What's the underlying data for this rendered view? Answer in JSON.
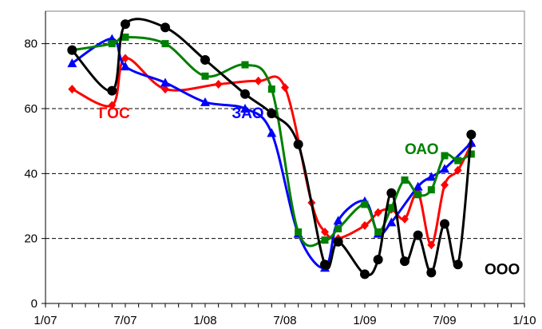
{
  "chart_data": {
    "type": "line",
    "title": "",
    "xlabel": "",
    "ylabel": "",
    "ylim": [
      0,
      90
    ],
    "xlim": [
      "2007-01",
      "2010-01"
    ],
    "yticks": [
      0,
      20,
      40,
      60,
      80
    ],
    "xticks": [
      "1/07",
      "7/07",
      "1/08",
      "7/08",
      "1/09",
      "7/09",
      "1/10"
    ],
    "grid": "horizontal dashed",
    "legend": "inline labels",
    "series": [
      {
        "name": "ГОС",
        "color": "#ff0000",
        "marker": "diamond",
        "label_at": [
          "2007-05",
          57
        ],
        "points": [
          [
            "2007-03",
            66
          ],
          [
            "2007-06",
            61
          ],
          [
            "2007-07",
            75.5
          ],
          [
            "2007-10",
            66
          ],
          [
            "2008-02",
            67.5
          ],
          [
            "2008-05",
            68.5
          ],
          [
            "2008-07",
            66.5
          ],
          [
            "2008-09",
            31
          ],
          [
            "2008-10",
            22
          ],
          [
            "2008-11",
            20
          ],
          [
            "2009-01",
            24
          ],
          [
            "2009-02",
            28
          ],
          [
            "2009-03",
            29
          ],
          [
            "2009-04",
            26
          ],
          [
            "2009-05",
            34
          ],
          [
            "2009-06",
            18
          ],
          [
            "2009-07",
            36.5
          ],
          [
            "2009-08",
            41
          ],
          [
            "2009-09",
            49
          ]
        ]
      },
      {
        "name": "ЗАО",
        "color": "#0000ff",
        "marker": "triangle",
        "label_at": [
          "2008-03",
          57
        ],
        "points": [
          [
            "2007-03",
            74
          ],
          [
            "2007-06",
            81.5
          ],
          [
            "2007-07",
            73
          ],
          [
            "2007-10",
            68
          ],
          [
            "2008-01",
            62
          ],
          [
            "2008-04",
            60
          ],
          [
            "2008-06",
            52.5
          ],
          [
            "2008-08",
            21.5
          ],
          [
            "2008-10",
            11
          ],
          [
            "2008-11",
            25.5
          ],
          [
            "2009-01",
            31.5
          ],
          [
            "2009-02",
            21.5
          ],
          [
            "2009-03",
            25
          ],
          [
            "2009-05",
            36
          ],
          [
            "2009-06",
            39
          ],
          [
            "2009-07",
            41.5
          ],
          [
            "2009-09",
            49.5
          ]
        ]
      },
      {
        "name": "ОАО",
        "color": "#008000",
        "marker": "square",
        "label_at": [
          "2009-04",
          46
        ],
        "points": [
          [
            "2007-03",
            78
          ],
          [
            "2007-06",
            80
          ],
          [
            "2007-07",
            82
          ],
          [
            "2007-10",
            80
          ],
          [
            "2008-01",
            70
          ],
          [
            "2008-04",
            73.5
          ],
          [
            "2008-06",
            66
          ],
          [
            "2008-08",
            22
          ],
          [
            "2008-10",
            19.5
          ],
          [
            "2008-11",
            23
          ],
          [
            "2009-01",
            30.5
          ],
          [
            "2009-02",
            22
          ],
          [
            "2009-03",
            29.5
          ],
          [
            "2009-04",
            38
          ],
          [
            "2009-05",
            33.5
          ],
          [
            "2009-06",
            35
          ],
          [
            "2009-07",
            45.5
          ],
          [
            "2009-08",
            44
          ],
          [
            "2009-09",
            46
          ]
        ]
      },
      {
        "name": "ООО",
        "color": "#000000",
        "marker": "circle",
        "label_at": [
          "2009-10",
          9
        ],
        "points": [
          [
            "2007-03",
            78
          ],
          [
            "2007-06",
            65.5
          ],
          [
            "2007-07",
            86
          ],
          [
            "2007-10",
            85
          ],
          [
            "2008-01",
            75
          ],
          [
            "2008-04",
            64.5
          ],
          [
            "2008-06",
            58.5
          ],
          [
            "2008-08",
            49
          ],
          [
            "2008-10",
            12
          ],
          [
            "2008-11",
            19
          ],
          [
            "2009-01",
            9
          ],
          [
            "2009-02",
            13.5
          ],
          [
            "2009-03",
            34
          ],
          [
            "2009-04",
            13
          ],
          [
            "2009-05",
            21
          ],
          [
            "2009-06",
            9.5
          ],
          [
            "2009-07",
            24.5
          ],
          [
            "2009-08",
            12
          ],
          [
            "2009-09",
            52
          ]
        ]
      }
    ]
  }
}
